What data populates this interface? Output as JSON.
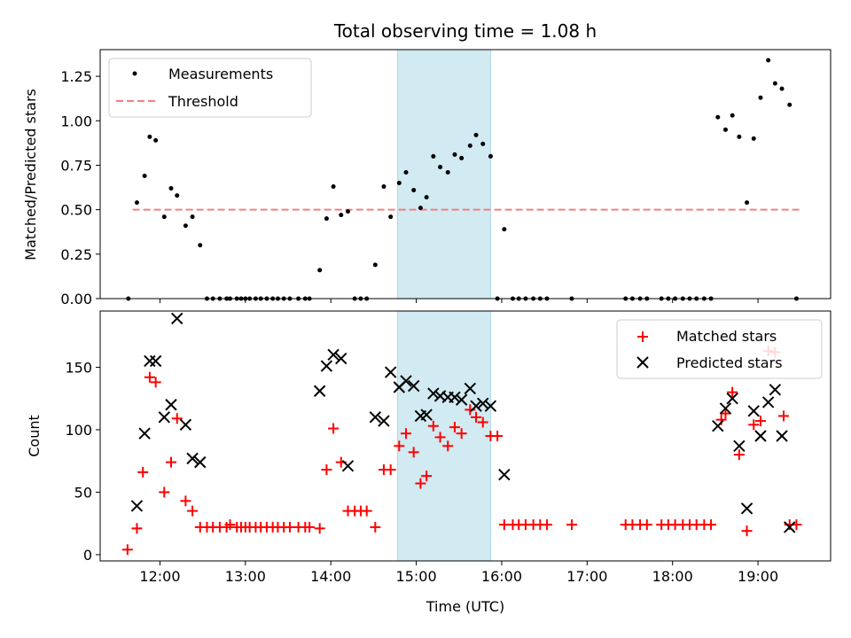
{
  "chart_data": [
    {
      "panel": "top",
      "type": "scatter",
      "title": "Total observing time = 1.08 h",
      "xlabel": "",
      "ylabel": "Matched/Predicted stars",
      "ylim": [
        0,
        1.4
      ],
      "yticks": [
        "0.00",
        "0.25",
        "0.50",
        "0.75",
        "1.00",
        "1.25"
      ],
      "highlight_span": {
        "x0": 14.78,
        "x1": 15.87,
        "color": "#add8e6"
      },
      "legend": {
        "position": "top-left",
        "entries": [
          "Measurements",
          "Threshold"
        ]
      },
      "series": [
        {
          "name": "Measurements",
          "color": "#000000",
          "x": [
            11.63,
            11.73,
            11.82,
            11.88,
            11.95,
            12.05,
            12.13,
            12.2,
            12.3,
            12.38,
            12.47,
            12.55,
            12.62,
            12.7,
            12.78,
            12.82,
            12.9,
            12.95,
            13.0,
            13.05,
            13.12,
            13.18,
            13.25,
            13.32,
            13.38,
            13.45,
            13.52,
            13.62,
            13.7,
            13.75,
            13.87,
            13.95,
            14.03,
            14.12,
            14.2,
            14.28,
            14.35,
            14.42,
            14.52,
            14.62,
            14.7,
            14.8,
            14.88,
            14.97,
            15.05,
            15.12,
            15.2,
            15.28,
            15.37,
            15.45,
            15.53,
            15.63,
            15.7,
            15.78,
            15.87,
            15.95,
            16.03,
            16.13,
            16.2,
            16.28,
            16.37,
            16.45,
            16.53,
            16.82,
            17.45,
            17.53,
            17.62,
            17.7,
            17.87,
            17.95,
            18.03,
            18.12,
            18.2,
            18.28,
            18.37,
            18.45,
            18.53,
            18.62,
            18.7,
            18.78,
            18.87,
            18.95,
            19.03,
            19.12,
            19.2,
            19.28,
            19.37,
            19.45
          ],
          "y": [
            0.0,
            0.54,
            0.69,
            0.91,
            0.89,
            0.46,
            0.62,
            0.58,
            0.41,
            0.46,
            0.3,
            0.0,
            0.0,
            0.0,
            0.0,
            0.0,
            0.0,
            0.0,
            0.0,
            0.0,
            0.0,
            0.0,
            0.0,
            0.0,
            0.0,
            0.0,
            0.0,
            0.0,
            0.0,
            0.0,
            0.16,
            0.45,
            0.63,
            0.47,
            0.49,
            0.0,
            0.0,
            0.0,
            0.19,
            0.63,
            0.46,
            0.65,
            0.71,
            0.61,
            0.51,
            0.57,
            0.8,
            0.74,
            0.71,
            0.81,
            0.79,
            0.86,
            0.92,
            0.87,
            0.8,
            0.0,
            0.39,
            0.0,
            0.0,
            0.0,
            0.0,
            0.0,
            0.0,
            0.0,
            0.0,
            0.0,
            0.0,
            0.0,
            0.0,
            0.0,
            0.0,
            0.0,
            0.0,
            0.0,
            0.0,
            0.0,
            1.02,
            0.95,
            1.03,
            0.91,
            0.54,
            0.9,
            1.13,
            1.34,
            1.21,
            1.18,
            1.09,
            0.0
          ]
        },
        {
          "name": "Threshold",
          "color": "#f08080",
          "style": "dashed",
          "x": [
            11.68,
            19.5
          ],
          "y": [
            0.5,
            0.5
          ]
        }
      ]
    },
    {
      "panel": "bottom",
      "type": "scatter",
      "title": "",
      "xlabel": "Time (UTC)",
      "ylabel": "Count",
      "xlim": [
        11.3,
        19.85
      ],
      "ylim": [
        -5,
        195
      ],
      "xticks": [
        "12:00",
        "13:00",
        "14:00",
        "15:00",
        "16:00",
        "17:00",
        "18:00",
        "19:00"
      ],
      "yticks": [
        "0",
        "50",
        "100",
        "150"
      ],
      "highlight_span": {
        "x0": 14.78,
        "x1": 15.87,
        "color": "#add8e6"
      },
      "legend": {
        "position": "top-right",
        "entries": [
          "Matched stars",
          "Predicted stars"
        ]
      },
      "series": [
        {
          "name": "Matched stars",
          "color": "#ff0000",
          "marker": "plus",
          "x": [
            11.62,
            11.73,
            11.8,
            11.88,
            11.95,
            12.05,
            12.13,
            12.2,
            12.3,
            12.38,
            12.47,
            12.55,
            12.62,
            12.7,
            12.78,
            12.82,
            12.9,
            12.95,
            13.0,
            13.05,
            13.12,
            13.18,
            13.25,
            13.32,
            13.38,
            13.45,
            13.52,
            13.62,
            13.7,
            13.75,
            13.87,
            13.95,
            14.03,
            14.12,
            14.2,
            14.28,
            14.35,
            14.42,
            14.52,
            14.62,
            14.7,
            14.8,
            14.88,
            14.97,
            15.05,
            15.12,
            15.2,
            15.28,
            15.37,
            15.45,
            15.53,
            15.63,
            15.7,
            15.78,
            15.87,
            15.95,
            16.03,
            16.13,
            16.2,
            16.28,
            16.37,
            16.45,
            16.53,
            16.82,
            17.45,
            17.53,
            17.62,
            17.7,
            17.87,
            17.95,
            18.03,
            18.12,
            18.2,
            18.28,
            18.37,
            18.45,
            18.57,
            18.62,
            18.7,
            18.78,
            18.87,
            18.95,
            19.03,
            19.12,
            19.2,
            19.3,
            19.37,
            19.45
          ],
          "y": [
            4,
            21,
            66,
            142,
            138,
            50,
            74,
            109,
            43,
            35,
            22,
            22,
            22,
            22,
            22,
            24,
            22,
            22,
            22,
            22,
            22,
            22,
            22,
            22,
            22,
            22,
            22,
            22,
            22,
            22,
            21,
            68,
            101,
            74,
            35,
            35,
            35,
            35,
            22,
            68,
            68,
            87,
            97,
            82,
            57,
            63,
            103,
            94,
            87,
            102,
            97,
            116,
            110,
            106,
            95,
            95,
            24,
            24,
            24,
            24,
            24,
            24,
            24,
            24,
            24,
            24,
            24,
            24,
            24,
            24,
            24,
            24,
            24,
            24,
            24,
            24,
            108,
            113,
            130,
            80,
            19,
            104,
            107,
            163,
            162,
            111,
            24,
            24
          ]
        },
        {
          "name": "Predicted stars",
          "color": "#000000",
          "marker": "x",
          "x": [
            11.73,
            11.82,
            11.88,
            11.95,
            12.05,
            12.13,
            12.2,
            12.3,
            12.38,
            12.47,
            13.87,
            13.95,
            14.03,
            14.12,
            14.2,
            14.52,
            14.62,
            14.7,
            14.8,
            14.88,
            14.97,
            15.05,
            15.12,
            15.2,
            15.28,
            15.37,
            15.45,
            15.53,
            15.63,
            15.7,
            15.78,
            15.87,
            16.03,
            18.53,
            18.62,
            18.7,
            18.78,
            18.87,
            18.95,
            19.03,
            19.12,
            19.2,
            19.28,
            19.37
          ],
          "y": [
            39,
            97,
            155,
            155,
            110,
            120,
            189,
            104,
            77,
            74,
            131,
            151,
            160,
            157,
            71,
            110,
            107,
            146,
            134,
            139,
            135,
            111,
            112,
            129,
            127,
            126,
            126,
            124,
            133,
            119,
            121,
            119,
            64,
            103,
            117,
            125,
            87,
            37,
            115,
            95,
            122,
            132,
            95,
            22
          ]
        }
      ]
    }
  ]
}
